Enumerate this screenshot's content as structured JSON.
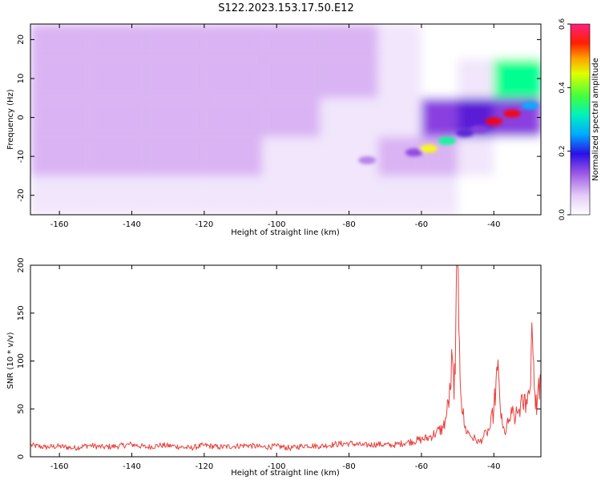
{
  "title": "S122.2023.153.17.50.E12",
  "colors": {
    "snr_line": "#e8413c",
    "colormap": [
      "#ffffff",
      "#f1e6fb",
      "#d9b3f3",
      "#b07ae8",
      "#8a3fe0",
      "#5a1fd6",
      "#0a10f0",
      "#00b0ff",
      "#00ff90",
      "#a0ff00",
      "#ffff00",
      "#ff8000",
      "#ff0000",
      "#ff2080"
    ]
  },
  "chart_data": [
    {
      "type": "heatmap",
      "xlabel": "Height of straight line (km)",
      "ylabel": "Frequency (Hz)",
      "xlim": [
        -168,
        -27
      ],
      "ylim": [
        -25,
        24
      ],
      "xticks": [
        -160,
        -140,
        -120,
        -100,
        -80,
        -60,
        -40
      ],
      "yticks": [
        -20,
        -10,
        0,
        10,
        20
      ],
      "x_edges": [
        -168,
        -152,
        -136,
        -120,
        -104,
        -88,
        -72,
        -60,
        -50,
        -40,
        -27
      ],
      "y_edges": [
        -25,
        -15,
        -5,
        5,
        15,
        24
      ],
      "z": [
        [
          0.06,
          0.06,
          0.06,
          0.06,
          0.05,
          0.05,
          0.04,
          0.03,
          0.02,
          0.02
        ],
        [
          0.07,
          0.07,
          0.07,
          0.07,
          0.06,
          0.06,
          0.07,
          0.1,
          0.06,
          0.02
        ],
        [
          0.07,
          0.07,
          0.07,
          0.07,
          0.07,
          0.06,
          0.06,
          0.18,
          0.25,
          0.2
        ],
        [
          0.07,
          0.07,
          0.07,
          0.07,
          0.07,
          0.07,
          0.05,
          0.02,
          0.03,
          0.35
        ],
        [
          0.07,
          0.07,
          0.07,
          0.07,
          0.07,
          0.07,
          0.05,
          0.02,
          0.02,
          0.02
        ]
      ],
      "ridge": [
        {
          "x": -75,
          "y": -11,
          "amp": 0.12
        },
        {
          "x": -62,
          "y": -9,
          "amp": 0.2
        },
        {
          "x": -58,
          "y": -8,
          "amp": 0.45
        },
        {
          "x": -53,
          "y": -6,
          "amp": 0.35
        },
        {
          "x": -48,
          "y": -4,
          "amp": 0.25
        },
        {
          "x": -44,
          "y": -3,
          "amp": 0.2
        },
        {
          "x": -40,
          "y": -1,
          "amp": 0.55
        },
        {
          "x": -35,
          "y": 1,
          "amp": 0.55
        },
        {
          "x": -30,
          "y": 3,
          "amp": 0.3
        }
      ],
      "colorbar": {
        "label": "Normalized spectral amplitude",
        "min": 0.0,
        "max": 0.6,
        "ticks": [
          "0.0",
          "0.2",
          "0.4",
          "0.6"
        ]
      }
    },
    {
      "type": "line",
      "xlabel": "Height of straight line (km)",
      "ylabel": "SNR (10 * v/v)",
      "xlim": [
        -168,
        -27
      ],
      "ylim": [
        0,
        200
      ],
      "xticks": [
        -160,
        -140,
        -120,
        -100,
        -80,
        -60,
        -40
      ],
      "yticks": [
        0,
        50,
        100,
        150,
        200
      ],
      "series": [
        {
          "x": [
            -168,
            -164,
            -160,
            -156,
            -152,
            -148,
            -144,
            -140,
            -136,
            -132,
            -128,
            -124,
            -120,
            -116,
            -112,
            -108,
            -104,
            -100,
            -96,
            -92,
            -88,
            -84,
            -80,
            -76,
            -72,
            -68,
            -64,
            -60,
            -58,
            -56,
            -54,
            -53,
            -52,
            -51.5,
            -51,
            -50.5,
            -50,
            -49.5,
            -49,
            -48,
            -47,
            -46,
            -45,
            -44,
            -43,
            -42,
            -41,
            -40,
            -39,
            -38.5,
            -38,
            -37.5,
            -37,
            -36,
            -35,
            -34,
            -33,
            -32,
            -31,
            -30,
            -29.5,
            -29,
            -28.5,
            -28,
            -27
          ],
          "y": [
            12,
            10,
            11,
            9,
            12,
            10,
            11,
            13,
            10,
            12,
            11,
            9,
            12,
            10,
            11,
            12,
            10,
            11,
            9,
            12,
            11,
            13,
            14,
            12,
            13,
            12,
            15,
            18,
            20,
            25,
            30,
            45,
            70,
            105,
            60,
            140,
            200,
            120,
            60,
            30,
            25,
            20,
            18,
            15,
            20,
            25,
            30,
            50,
            90,
            75,
            40,
            30,
            25,
            35,
            45,
            40,
            50,
            55,
            60,
            70,
            140,
            100,
            50,
            60,
            85
          ]
        }
      ]
    }
  ]
}
